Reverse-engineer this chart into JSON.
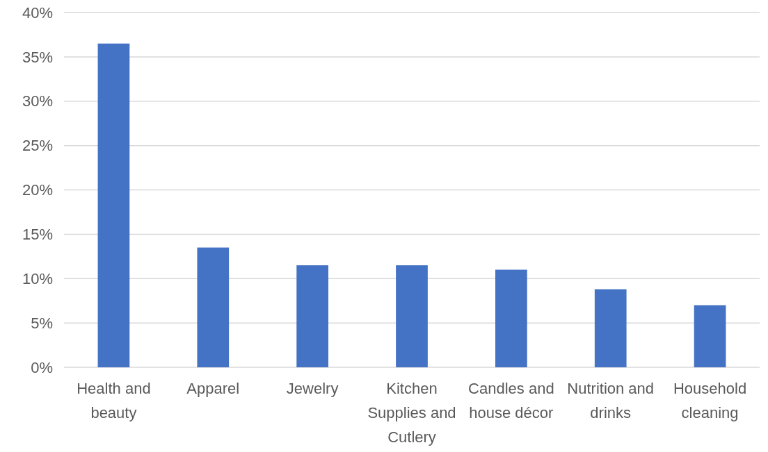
{
  "chart_data": {
    "type": "bar",
    "categories": [
      "Health and beauty",
      "Apparel",
      "Jewelry",
      "Kitchen Supplies and Cutlery",
      "Candles and house décor",
      "Nutrition and drinks",
      "Household cleaning"
    ],
    "values": [
      36.5,
      13.5,
      11.5,
      11.5,
      11.0,
      8.8,
      7.0
    ],
    "color": "#4472c4",
    "ylim": [
      0,
      40
    ],
    "yticks": [
      {
        "value": 0,
        "label": "0%"
      },
      {
        "value": 5,
        "label": "5%"
      },
      {
        "value": 10,
        "label": "10%"
      },
      {
        "value": 15,
        "label": "15%"
      },
      {
        "value": 20,
        "label": "20%"
      },
      {
        "value": 25,
        "label": "25%"
      },
      {
        "value": 30,
        "label": "30%"
      },
      {
        "value": 35,
        "label": "35%"
      },
      {
        "value": 40,
        "label": "40%"
      }
    ],
    "grid": "y"
  }
}
